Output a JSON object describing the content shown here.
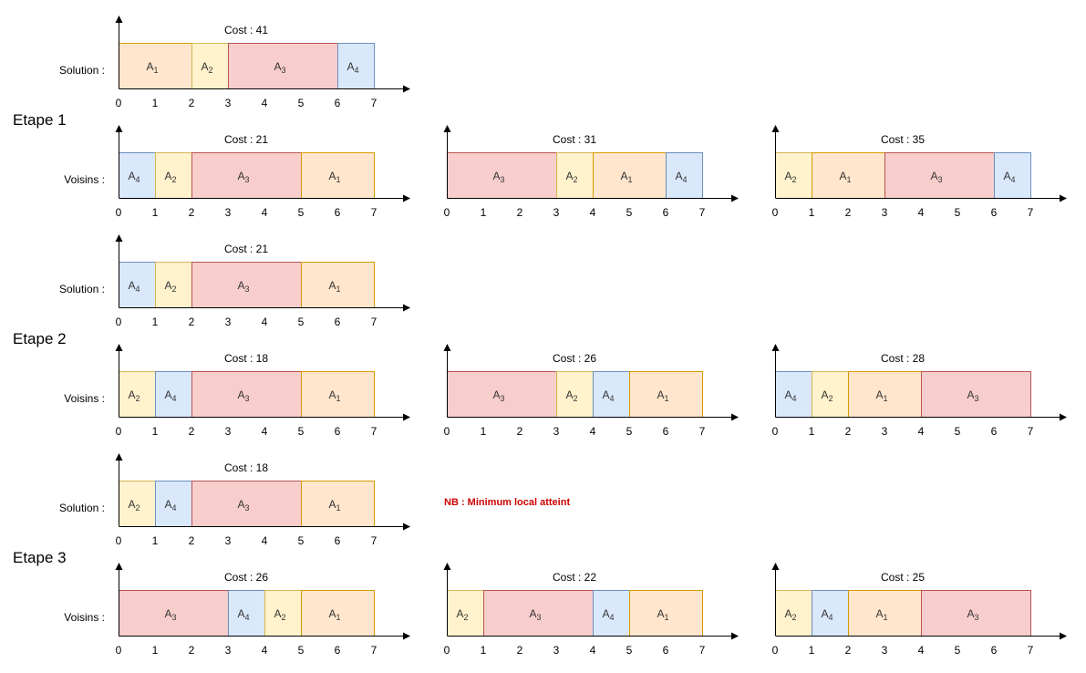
{
  "colors": {
    "A1": {
      "fill": "#ffe6cc",
      "stroke": "#d79b00"
    },
    "A2": {
      "fill": "#fff2cc",
      "stroke": "#d6b656"
    },
    "A3": {
      "fill": "#f8cecc",
      "stroke": "#b85450"
    },
    "A4": {
      "fill": "#dae8fc",
      "stroke": "#6c8ebf"
    },
    "note": "#cc0000"
  },
  "axis_ticks": [
    "0",
    "1",
    "2",
    "3",
    "4",
    "5",
    "6",
    "7"
  ],
  "task_durations": {
    "A1": 2,
    "A2": 1,
    "A3": 3,
    "A4": 1
  },
  "note": "NB : Minimum local atteint",
  "sections": [
    {
      "title": "",
      "rows": [
        {
          "label": "Solution :",
          "charts": [
            {
              "cost": "Cost : 41",
              "order": [
                "A1",
                "A2",
                "A3",
                "A4"
              ]
            }
          ]
        }
      ]
    },
    {
      "title": "Etape 1",
      "rows": [
        {
          "label": "Voisins :",
          "charts": [
            {
              "cost": "Cost : 21",
              "order": [
                "A4",
                "A2",
                "A3",
                "A1"
              ]
            },
            {
              "cost": "Cost : 31",
              "order": [
                "A3",
                "A2",
                "A1",
                "A4"
              ]
            },
            {
              "cost": "Cost : 35",
              "order": [
                "A2",
                "A1",
                "A3",
                "A4"
              ]
            }
          ]
        },
        {
          "label": "Solution :",
          "charts": [
            {
              "cost": "Cost : 21",
              "order": [
                "A4",
                "A2",
                "A3",
                "A1"
              ]
            }
          ]
        }
      ]
    },
    {
      "title": "Etape 2",
      "rows": [
        {
          "label": "Voisins :",
          "charts": [
            {
              "cost": "Cost : 18",
              "order": [
                "A2",
                "A4",
                "A3",
                "A1"
              ]
            },
            {
              "cost": "Cost : 26",
              "order": [
                "A3",
                "A2",
                "A4",
                "A1"
              ]
            },
            {
              "cost": "Cost : 28",
              "order": [
                "A4",
                "A2",
                "A1",
                "A3"
              ]
            }
          ]
        },
        {
          "label": "Solution :",
          "charts": [
            {
              "cost": "Cost : 18",
              "order": [
                "A2",
                "A4",
                "A3",
                "A1"
              ]
            }
          ],
          "note": true
        }
      ]
    },
    {
      "title": "Etape 3",
      "rows": [
        {
          "label": "Voisins :",
          "charts": [
            {
              "cost": "Cost : 26",
              "order": [
                "A3",
                "A4",
                "A2",
                "A1"
              ]
            },
            {
              "cost": "Cost : 22",
              "order": [
                "A2",
                "A3",
                "A4",
                "A1"
              ]
            },
            {
              "cost": "Cost : 25",
              "order": [
                "A2",
                "A4",
                "A1",
                "A3"
              ]
            }
          ]
        }
      ]
    }
  ]
}
